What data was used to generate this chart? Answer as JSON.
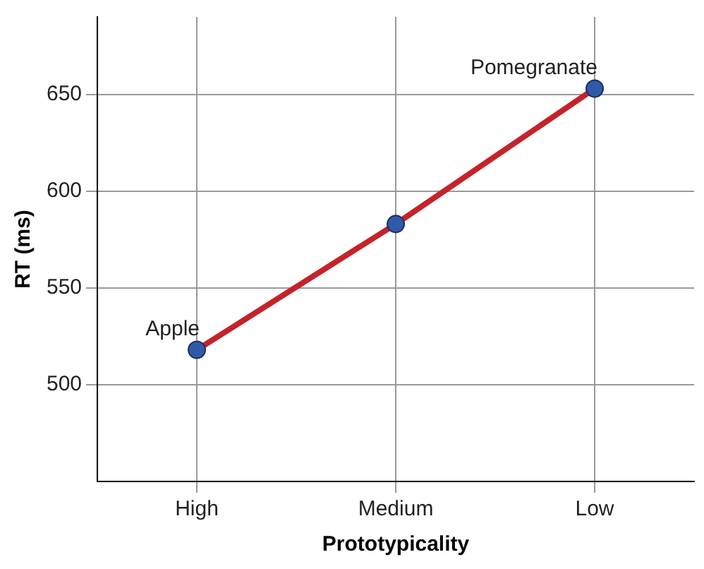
{
  "chart_data": {
    "type": "line",
    "xlabel": "Prototypicality",
    "ylabel": "RT (ms)",
    "categories": [
      "High",
      "Medium",
      "Low"
    ],
    "series": [
      {
        "color": "#c4232b",
        "values": [
          518,
          583,
          653
        ]
      }
    ],
    "ylim": [
      450,
      690
    ],
    "yticks": [
      500,
      550,
      600,
      650
    ],
    "grid": true,
    "marker": "circle",
    "line_style": "solid",
    "annotations": [
      {
        "text": "Apple",
        "x": "High",
        "y": 518
      },
      {
        "text": "Pomegranate",
        "x": "Low",
        "y": 653
      }
    ]
  }
}
